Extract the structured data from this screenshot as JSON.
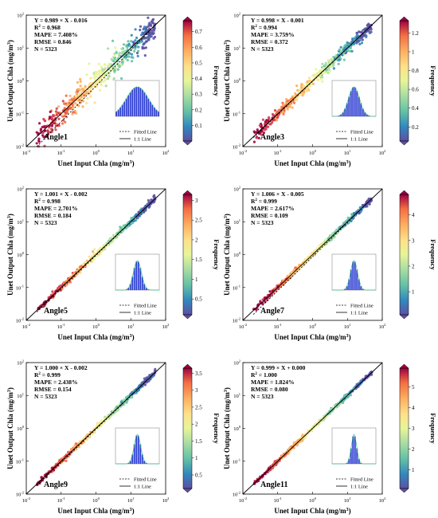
{
  "figure": {
    "x_label": "Unet Input Chla (mg/m",
    "y_label": "Unet Output Chla (mg/m",
    "unit_superscript": "3",
    "unit_close": ")",
    "colorbar_label": "Frequency",
    "legend": {
      "fitted": "Fitted Line",
      "identity": "1:1 Line"
    },
    "tick_base": "10"
  },
  "chart_data": [
    {
      "type": "scatter",
      "panel": "Angle1",
      "eq": "Y = 0.989 × X - 0.016",
      "r2_label": "R",
      "r2_value": " = 0.968",
      "mape": "MAPE = 7.408%",
      "rmse": "RMSE = 0.846",
      "n": "N = 5323",
      "x_scale": "log",
      "y_scale": "log",
      "xlim": [
        0.01,
        100
      ],
      "ylim": [
        0.01,
        100
      ],
      "fit": {
        "slope": 0.989,
        "intercept": -0.016
      },
      "colorbar": {
        "min": 0,
        "max": 0.77,
        "ticks": [
          0.1,
          0.2,
          0.3,
          0.4,
          0.5,
          0.6,
          0.7
        ]
      },
      "scatter_spread": 0.22,
      "histogram_spread": 5
    },
    {
      "type": "scatter",
      "panel": "Angle3",
      "eq": "Y = 0.998 × X - 0.001",
      "r2_label": "R",
      "r2_value": " = 0.994",
      "mape": "MAPE = 3.759%",
      "rmse": "RMSE = 0.372",
      "n": "N = 5323",
      "x_scale": "log",
      "y_scale": "log",
      "xlim": [
        0.01,
        100
      ],
      "ylim": [
        0.01,
        100
      ],
      "fit": {
        "slope": 0.998,
        "intercept": -0.001
      },
      "colorbar": {
        "min": 0.05,
        "max": 1.33,
        "ticks": [
          0.2,
          0.4,
          0.6,
          0.8,
          1.0,
          1.2
        ]
      },
      "scatter_spread": 0.1,
      "histogram_spread": 2.5
    },
    {
      "type": "scatter",
      "panel": "Angle5",
      "eq": "Y = 1.001 × X - 0.002",
      "r2_label": "R",
      "r2_value": " = 0.998",
      "mape": "MAPE = 2.701%",
      "rmse": "RMSE = 0.184",
      "n": "N = 5323",
      "x_scale": "log",
      "y_scale": "log",
      "xlim": [
        0.01,
        100
      ],
      "ylim": [
        0.01,
        100
      ],
      "fit": {
        "slope": 1.001,
        "intercept": -0.002
      },
      "colorbar": {
        "min": 0.1,
        "max": 3.15,
        "ticks": [
          0.5,
          1.0,
          1.5,
          2.0,
          2.5,
          3.0
        ]
      },
      "scatter_spread": 0.05,
      "histogram_spread": 1.8
    },
    {
      "type": "scatter",
      "panel": "Angle7",
      "eq": "Y = 1.006 × X - 0.005",
      "r2_label": "R",
      "r2_value": " = 0.999",
      "mape": "MAPE = 2.617%",
      "rmse": "RMSE = 0.109",
      "n": "N = 5323",
      "x_scale": "log",
      "y_scale": "log",
      "xlim": [
        0.01,
        100
      ],
      "ylim": [
        0.01,
        100
      ],
      "fit": {
        "slope": 1.006,
        "intercept": -0.005
      },
      "colorbar": {
        "min": 0.1,
        "max": 4.8,
        "ticks": [
          1,
          2,
          3,
          4
        ]
      },
      "scatter_spread": 0.04,
      "histogram_spread": 1.6
    },
    {
      "type": "scatter",
      "panel": "Angle9",
      "eq": "Y = 1.000 × X - 0.002",
      "r2_label": "R",
      "r2_value": " = 0.999",
      "mape": "MAPE = 2.438%",
      "rmse": "RMSE = 0.154",
      "n": "N = 5323",
      "x_scale": "log",
      "y_scale": "log",
      "xlim": [
        0.01,
        100
      ],
      "ylim": [
        0.01,
        100
      ],
      "fit": {
        "slope": 1.0,
        "intercept": -0.002
      },
      "colorbar": {
        "min": 0.1,
        "max": 3.65,
        "ticks": [
          0.5,
          1.0,
          1.5,
          2.0,
          2.5,
          3.0,
          3.5
        ]
      },
      "scatter_spread": 0.04,
      "histogram_spread": 1.5
    },
    {
      "type": "scatter",
      "panel": "Angle11",
      "eq": "Y = 0.999 × X + 0.000",
      "r2_label": "R",
      "r2_value": " = 1.000",
      "mape": "MAPE = 1.824%",
      "rmse": "RMSE = 0.080",
      "n": "N = 5323",
      "x_scale": "log",
      "y_scale": "log",
      "xlim": [
        0.01,
        100
      ],
      "ylim": [
        0.01,
        100
      ],
      "fit": {
        "slope": 0.999,
        "intercept": 0.0
      },
      "colorbar": {
        "min": 0.1,
        "max": 5.9,
        "ticks": [
          1,
          2,
          3,
          4,
          5
        ]
      },
      "scatter_spread": 0.03,
      "histogram_spread": 1.2
    }
  ]
}
